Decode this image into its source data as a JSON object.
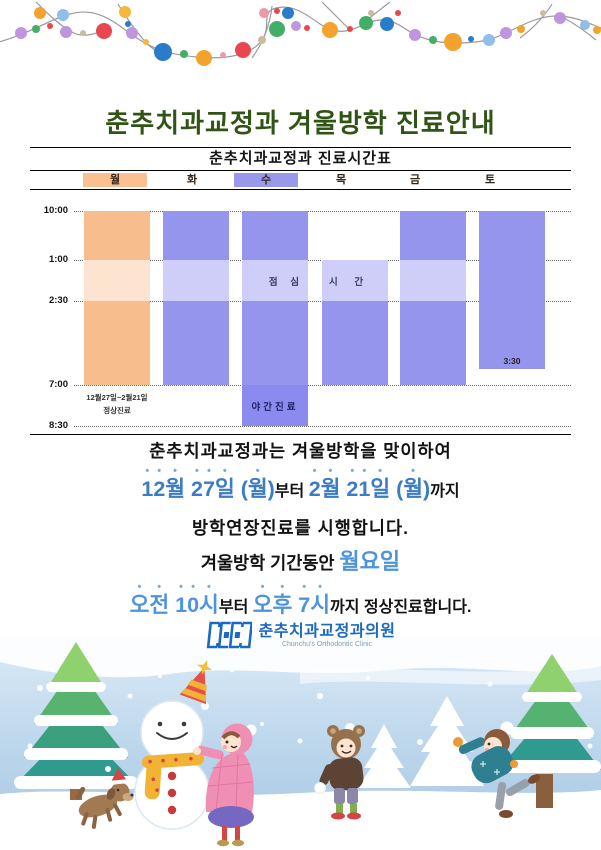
{
  "title": "춘추치과교정과 겨울방학 진료안내",
  "timetable": {
    "title": "춘추치과교정과 진료시간표",
    "days": [
      {
        "label": "월",
        "highlight": "orange"
      },
      {
        "label": "화",
        "highlight": "none"
      },
      {
        "label": "수",
        "highlight": "purple"
      },
      {
        "label": "목",
        "highlight": "none"
      },
      {
        "label": "금",
        "highlight": "none"
      },
      {
        "label": "토",
        "highlight": "none"
      }
    ],
    "time_labels": [
      "10:00",
      "1:00",
      "2:30",
      "7:00",
      "8:30"
    ],
    "columns": [
      {
        "day": "월",
        "color": "orange",
        "segments": [
          {
            "from": "10:00",
            "to": "1:00",
            "shade": "dark"
          },
          {
            "from": "1:00",
            "to": "2:30",
            "shade": "light"
          },
          {
            "from": "2:30",
            "to": "7:00",
            "shade": "dark"
          }
        ],
        "notes": [
          "12월27일~2월21일",
          "정상진료"
        ]
      },
      {
        "day": "화",
        "color": "purple",
        "segments": [
          {
            "from": "10:00",
            "to": "1:00",
            "shade": "dark"
          },
          {
            "from": "1:00",
            "to": "2:30",
            "shade": "light"
          },
          {
            "from": "2:30",
            "to": "7:00",
            "shade": "dark"
          }
        ]
      },
      {
        "day": "수",
        "color": "purple",
        "segments": [
          {
            "from": "10:00",
            "to": "1:00",
            "shade": "dark"
          },
          {
            "from": "1:00",
            "to": "2:30",
            "shade": "light",
            "label": "점 심",
            "label_align": "right"
          },
          {
            "from": "2:30",
            "to": "7:00",
            "shade": "dark"
          },
          {
            "from": "7:00",
            "to": "8:30",
            "shade": "deep",
            "label": "야간진료",
            "label_align": "center"
          }
        ]
      },
      {
        "day": "목",
        "color": "purple",
        "segments": [
          {
            "from": "1:00",
            "to": "2:30",
            "shade": "light",
            "label": "시 간",
            "label_align": "left"
          },
          {
            "from": "2:30",
            "to": "7:00",
            "shade": "dark"
          }
        ]
      },
      {
        "day": "금",
        "color": "purple",
        "segments": [
          {
            "from": "10:00",
            "to": "1:00",
            "shade": "dark"
          },
          {
            "from": "1:00",
            "to": "2:30",
            "shade": "light"
          },
          {
            "from": "2:30",
            "to": "7:00",
            "shade": "dark"
          }
        ]
      },
      {
        "day": "토",
        "color": "purple",
        "segments": [
          {
            "from": "10:00",
            "to": "3:30",
            "shade": "dark",
            "end_label": "3:30"
          }
        ]
      }
    ],
    "lunch_text": "점심시간",
    "night_text": "야간진료"
  },
  "announcement": {
    "line1": "춘추치과교정과는 겨울방학을 맞이하여",
    "line2_date1": "12월 27일 (월)",
    "line2_between": "부터 ",
    "line2_date2": "2월 21일 (월)",
    "line2_suffix": "까지",
    "line3": "방학연장진료를 시행합니다.",
    "line4_prefix": "겨울방학 기간동안 ",
    "line4_highlight": "월요일",
    "line5_time1": "오전 10시",
    "line5_between": "부터 ",
    "line5_time2": "오후 7시",
    "line5_suffix": "까지 정상진료합니다."
  },
  "logo": {
    "name_ko": "춘추치과교정과의원",
    "name_en": "Chunchu's Orthodontic Clinic"
  },
  "colors": {
    "orange_dark": "#F8BD8D",
    "orange_light": "#FDE4D0",
    "purple_dark": "#9595ED",
    "purple_light": "#CECEF8",
    "purple_deep": "#8B8BEF",
    "header_orange": "#FAC090",
    "header_purple": "#9999EB",
    "title_green": "#2F5415",
    "date_blue": "#3B7CC4",
    "highlight_blue": "#4E94DA",
    "logo_blue": "#1B6AC1"
  }
}
